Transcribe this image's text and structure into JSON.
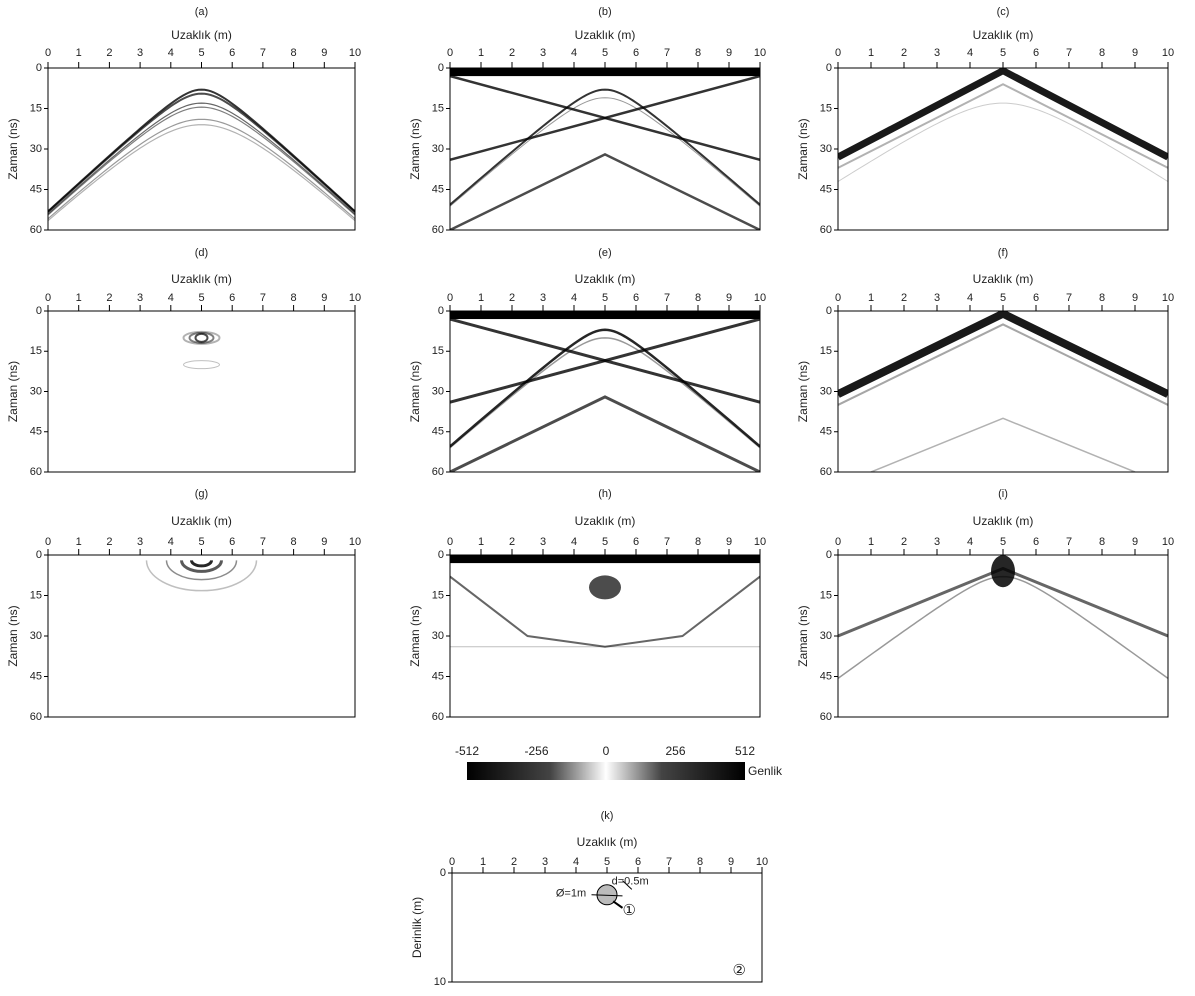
{
  "panels": [
    {
      "label": "(a)",
      "x_label": "Uzaklık (m)",
      "y_label": "Zaman (ns)",
      "xlim": [
        0,
        10
      ],
      "ylim": [
        0,
        60
      ],
      "xticks": [
        0,
        1,
        2,
        3,
        4,
        5,
        6,
        7,
        8,
        9,
        10
      ],
      "yticks": [
        0,
        15,
        30,
        45,
        60
      ]
    },
    {
      "label": "(b)",
      "x_label": "Uzaklık (m)",
      "y_label": "Zaman (ns)",
      "xlim": [
        0,
        10
      ],
      "ylim": [
        0,
        60
      ],
      "xticks": [
        0,
        1,
        2,
        3,
        4,
        5,
        6,
        7,
        8,
        9,
        10
      ],
      "yticks": [
        0,
        15,
        30,
        45,
        60
      ]
    },
    {
      "label": "(c)",
      "x_label": "Uzaklık (m)",
      "y_label": "Zaman (ns)",
      "xlim": [
        0,
        10
      ],
      "ylim": [
        0,
        60
      ],
      "xticks": [
        0,
        1,
        2,
        3,
        4,
        5,
        6,
        7,
        8,
        9,
        10
      ],
      "yticks": [
        0,
        15,
        30,
        45,
        60
      ]
    },
    {
      "label": "(d)",
      "x_label": "Uzaklık (m)",
      "y_label": "Zaman (ns)",
      "xlim": [
        0,
        10
      ],
      "ylim": [
        0,
        60
      ],
      "xticks": [
        0,
        1,
        2,
        3,
        4,
        5,
        6,
        7,
        8,
        9,
        10
      ],
      "yticks": [
        0,
        15,
        30,
        45,
        60
      ]
    },
    {
      "label": "(e)",
      "x_label": "Uzaklık (m)",
      "y_label": "Zaman (ns)",
      "xlim": [
        0,
        10
      ],
      "ylim": [
        0,
        60
      ],
      "xticks": [
        0,
        1,
        2,
        3,
        4,
        5,
        6,
        7,
        8,
        9,
        10
      ],
      "yticks": [
        0,
        15,
        30,
        45,
        60
      ]
    },
    {
      "label": "(f)",
      "x_label": "Uzaklık (m)",
      "y_label": "Zaman (ns)",
      "xlim": [
        0,
        10
      ],
      "ylim": [
        0,
        60
      ],
      "xticks": [
        0,
        1,
        2,
        3,
        4,
        5,
        6,
        7,
        8,
        9,
        10
      ],
      "yticks": [
        0,
        15,
        30,
        45,
        60
      ]
    },
    {
      "label": "(g)",
      "x_label": "Uzaklık (m)",
      "y_label": "Zaman (ns)",
      "xlim": [
        0,
        10
      ],
      "ylim": [
        0,
        60
      ],
      "xticks": [
        0,
        1,
        2,
        3,
        4,
        5,
        6,
        7,
        8,
        9,
        10
      ],
      "yticks": [
        0,
        15,
        30,
        45,
        60
      ]
    },
    {
      "label": "(h)",
      "x_label": "Uzaklık (m)",
      "y_label": "Zaman (ns)",
      "xlim": [
        0,
        10
      ],
      "ylim": [
        0,
        60
      ],
      "xticks": [
        0,
        1,
        2,
        3,
        4,
        5,
        6,
        7,
        8,
        9,
        10
      ],
      "yticks": [
        0,
        15,
        30,
        45,
        60
      ]
    },
    {
      "label": "(i)",
      "x_label": "Uzaklık (m)",
      "y_label": "Zaman (ns)",
      "xlim": [
        0,
        10
      ],
      "ylim": [
        0,
        60
      ],
      "xticks": [
        0,
        1,
        2,
        3,
        4,
        5,
        6,
        7,
        8,
        9,
        10
      ],
      "yticks": [
        0,
        15,
        30,
        45,
        60
      ]
    }
  ],
  "colorbar": {
    "label": "Genlik",
    "lim": [
      -512,
      512
    ],
    "ticks": [
      -512,
      -256,
      0,
      256,
      512
    ]
  },
  "model": {
    "label": "(k)",
    "x_label": "Uzaklık (m)",
    "y_label": "Derinlik (m)",
    "xlim": [
      0,
      10
    ],
    "ylim": [
      0,
      10
    ],
    "xticks": [
      0,
      1,
      2,
      3,
      4,
      5,
      6,
      7,
      8,
      9,
      10
    ],
    "yticks": [
      0,
      10
    ],
    "annotations": [
      "Ø=1m",
      "d=0.5m",
      "①",
      "②"
    ]
  }
}
